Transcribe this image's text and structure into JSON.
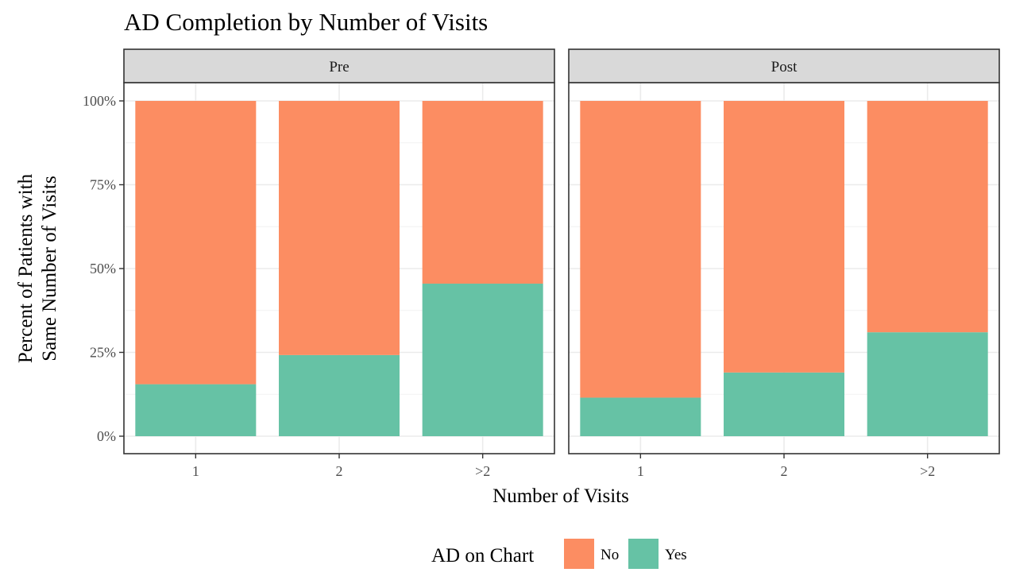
{
  "chart_data": {
    "type": "bar",
    "stacked": true,
    "title": "AD Completion by Number of Visits",
    "xlabel": "Number of Visits",
    "ylabel_lines": [
      "Percent of Patients with",
      "Same Number of Visits"
    ],
    "ylim": [
      0,
      1
    ],
    "yticks": [
      0,
      0.25,
      0.5,
      0.75,
      1
    ],
    "ytick_labels": [
      "0%",
      "25%",
      "50%",
      "75%",
      "100%"
    ],
    "categories": [
      "1",
      "2",
      ">2"
    ],
    "grid": true,
    "legend": {
      "title": "AD on Chart",
      "position": "bottom",
      "entries": [
        {
          "name": "No",
          "color": "#FC8D62"
        },
        {
          "name": "Yes",
          "color": "#66C2A5"
        }
      ]
    },
    "facets": [
      {
        "label": "Pre",
        "series": [
          {
            "name": "Yes",
            "values": [
              0.155,
              0.242,
              0.455
            ]
          },
          {
            "name": "No",
            "values": [
              0.845,
              0.758,
              0.545
            ]
          }
        ]
      },
      {
        "label": "Post",
        "series": [
          {
            "name": "Yes",
            "values": [
              0.115,
              0.19,
              0.31
            ]
          },
          {
            "name": "No",
            "values": [
              0.885,
              0.81,
              0.69
            ]
          }
        ]
      }
    ]
  }
}
